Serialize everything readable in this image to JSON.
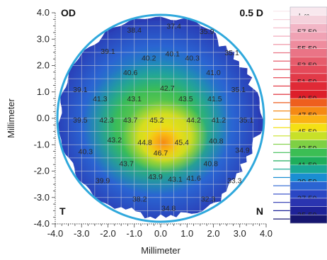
{
  "chart_data": {
    "type": "heatmap",
    "xlabel": "Millimeter",
    "ylabel": "Millimeter",
    "xlim": [
      -4.0,
      4.0
    ],
    "ylim": [
      -4.0,
      4.0
    ],
    "x_ticks": [
      "-4.0",
      "-3.0",
      "-2.0",
      "-1.0",
      "0.0",
      "1.0",
      "2.0",
      "3.0",
      "4.0"
    ],
    "y_ticks": [
      "4.0",
      "3.0",
      "2.0",
      "1.0",
      "0.0",
      "-1.0",
      "-2.0",
      "-3.0",
      "-4.0"
    ],
    "grid": true,
    "corner_labels": {
      "top_left": "OD",
      "top_right": "0.5 D",
      "bottom_left": "T",
      "bottom_right": "N"
    },
    "legend": {
      "placement": "right",
      "entries": [
        {
          "label": "+ ∞",
          "color": "#f8e8ee"
        },
        {
          "label": "",
          "color": "#f4d2dc"
        },
        {
          "label": "57.50",
          "color": "#f2b6c6"
        },
        {
          "label": "",
          "color": "#f0a2b4"
        },
        {
          "label": "55.50",
          "color": "#ee8c9e"
        },
        {
          "label": "",
          "color": "#ea7486"
        },
        {
          "label": "53.50",
          "color": "#e65c6c"
        },
        {
          "label": "",
          "color": "#e54a5a"
        },
        {
          "label": "51.50",
          "color": "#e23a48"
        },
        {
          "label": "",
          "color": "#e02a36"
        },
        {
          "label": "49.50",
          "color": "#dd1e2a"
        },
        {
          "label": "",
          "color": "#ee5f1e"
        },
        {
          "label": "47.50",
          "color": "#f58a14"
        },
        {
          "label": "",
          "color": "#fbb214"
        },
        {
          "label": "45.50",
          "color": "#f4e014"
        },
        {
          "label": "",
          "color": "#c8e028"
        },
        {
          "label": "43.50",
          "color": "#7ed044"
        },
        {
          "label": "",
          "color": "#3cbe54"
        },
        {
          "label": "41.50",
          "color": "#1eae5c"
        },
        {
          "label": "",
          "color": "#1aa896"
        },
        {
          "label": "39.50",
          "color": "#1a8ed2"
        },
        {
          "label": "",
          "color": "#2a64d2"
        },
        {
          "label": "37.50",
          "color": "#2a46c4"
        },
        {
          "label": "",
          "color": "#2a34b0"
        },
        {
          "label": "35.50",
          "color": "#1e2298"
        },
        {
          "label": "",
          "color": "#161670"
        }
      ]
    },
    "values": [
      {
        "x": -1.0,
        "y": 3.35,
        "label": "38.4"
      },
      {
        "x": 0.5,
        "y": 3.5,
        "label": "37.4"
      },
      {
        "x": 1.75,
        "y": 3.3,
        "label": "35.9"
      },
      {
        "x": -2.0,
        "y": 2.55,
        "label": "39.1"
      },
      {
        "x": -0.45,
        "y": 2.3,
        "label": "40.2"
      },
      {
        "x": 0.45,
        "y": 2.45,
        "label": "40.1"
      },
      {
        "x": 1.2,
        "y": 2.3,
        "label": "40.3"
      },
      {
        "x": 2.7,
        "y": 2.5,
        "label": "35.1"
      },
      {
        "x": -1.15,
        "y": 1.75,
        "label": "40.6"
      },
      {
        "x": 2.0,
        "y": 1.75,
        "label": "41.0"
      },
      {
        "x": -3.05,
        "y": 1.1,
        "label": "39.1"
      },
      {
        "x": 0.25,
        "y": 1.15,
        "label": "42.7"
      },
      {
        "x": 2.95,
        "y": 1.1,
        "label": "35.1"
      },
      {
        "x": -2.3,
        "y": 0.75,
        "label": "41.3"
      },
      {
        "x": -1.0,
        "y": 0.75,
        "label": "43.1"
      },
      {
        "x": 0.95,
        "y": 0.75,
        "label": "43.5"
      },
      {
        "x": 2.05,
        "y": 0.75,
        "label": "41.5"
      },
      {
        "x": -3.05,
        "y": -0.05,
        "label": "39.5"
      },
      {
        "x": -2.05,
        "y": -0.05,
        "label": "42.3"
      },
      {
        "x": -1.15,
        "y": -0.05,
        "label": "43.7"
      },
      {
        "x": -0.15,
        "y": -0.05,
        "label": "45.2"
      },
      {
        "x": 1.25,
        "y": -0.05,
        "label": "44.2"
      },
      {
        "x": 2.2,
        "y": -0.05,
        "label": "41.2"
      },
      {
        "x": 3.25,
        "y": -0.05,
        "label": "35.1"
      },
      {
        "x": -1.75,
        "y": -0.8,
        "label": "43.2"
      },
      {
        "x": -0.6,
        "y": -0.9,
        "label": "44.8"
      },
      {
        "x": 0.8,
        "y": -0.9,
        "label": "45.4"
      },
      {
        "x": 2.1,
        "y": -0.85,
        "label": "40.8"
      },
      {
        "x": -2.85,
        "y": -1.25,
        "label": "40.3"
      },
      {
        "x": 0.0,
        "y": -1.3,
        "label": "46.7"
      },
      {
        "x": 3.1,
        "y": -1.2,
        "label": "34.9"
      },
      {
        "x": -1.3,
        "y": -1.7,
        "label": "43.7"
      },
      {
        "x": 1.9,
        "y": -1.7,
        "label": "40.8"
      },
      {
        "x": -0.2,
        "y": -2.2,
        "label": "43.9"
      },
      {
        "x": 0.55,
        "y": -2.3,
        "label": "43.1"
      },
      {
        "x": 1.25,
        "y": -2.25,
        "label": "41.6"
      },
      {
        "x": -2.2,
        "y": -2.35,
        "label": "39.9"
      },
      {
        "x": 2.8,
        "y": -2.35,
        "label": "33.3"
      },
      {
        "x": -0.8,
        "y": -3.05,
        "label": "38.2"
      },
      {
        "x": 1.8,
        "y": -3.05,
        "label": "32.3"
      },
      {
        "x": 0.3,
        "y": -3.4,
        "label": "34.8"
      }
    ]
  }
}
